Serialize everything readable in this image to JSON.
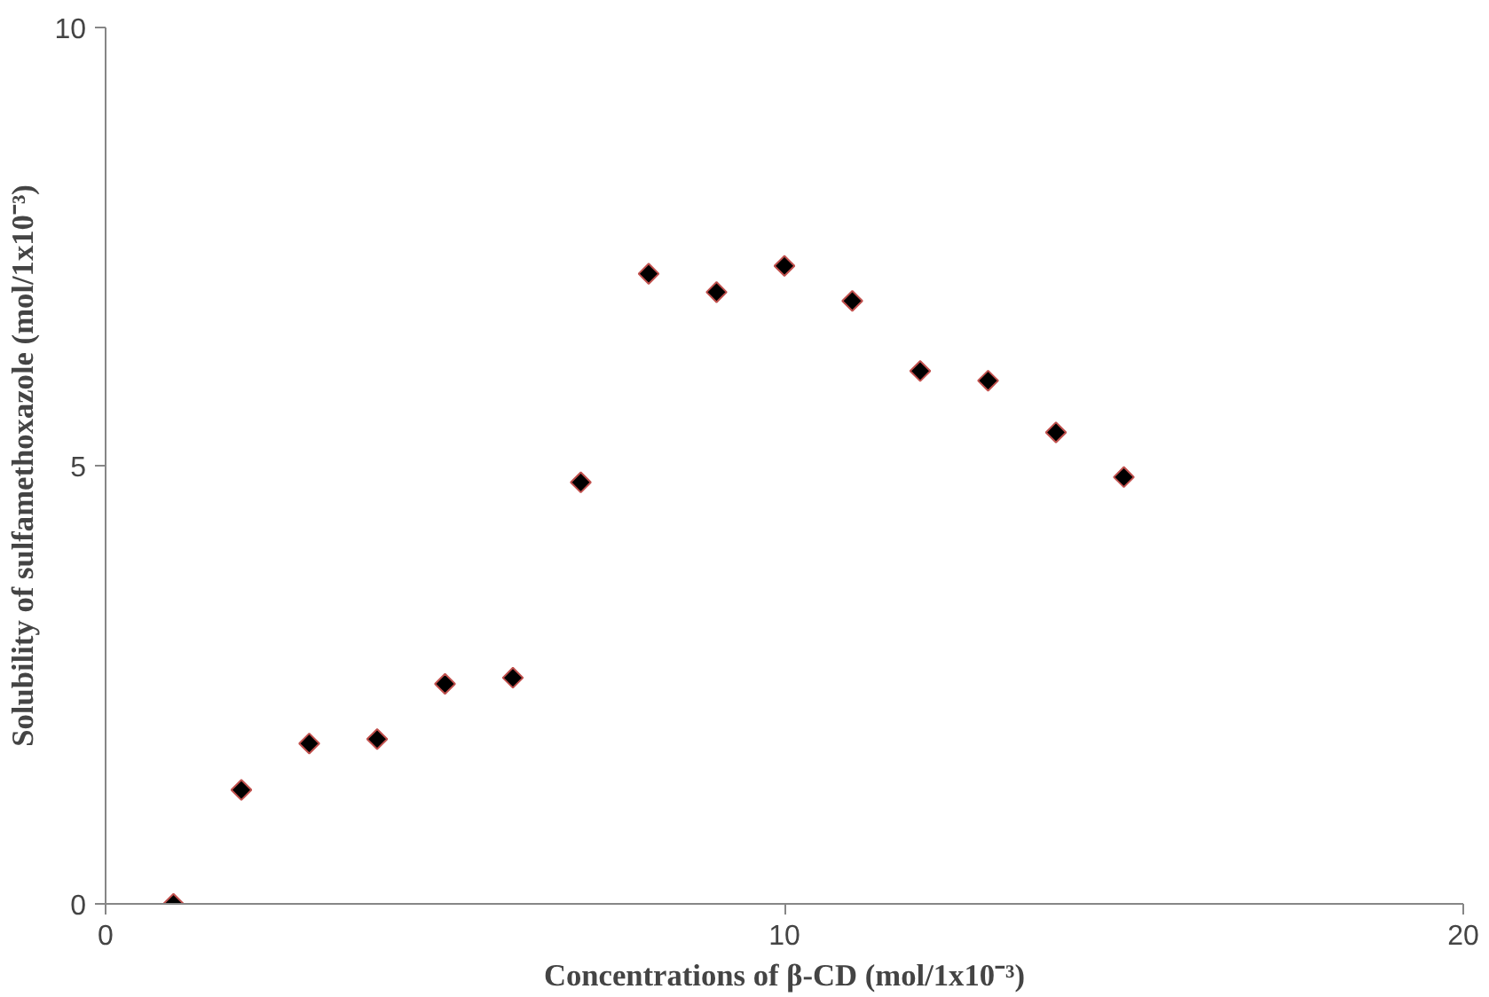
{
  "chart_data": {
    "type": "scatter",
    "xlabel": "Concentrations of β-CD (mol/1x10⁻³)",
    "ylabel": "Solubility of sulfamethoxazole (mol/1x10⁻³)",
    "x": [
      1,
      2,
      3,
      4,
      5,
      6,
      7,
      8,
      9,
      10,
      11,
      12,
      13,
      14,
      15
    ],
    "series": [
      {
        "color": "#000000",
        "values": [
          0,
          1.3,
          1.83,
          1.88,
          2.51,
          2.58,
          4.81,
          7.19,
          6.98,
          7.28,
          6.88,
          6.08,
          5.97,
          5.38,
          4.87
        ]
      }
    ],
    "xlim": [
      0,
      20
    ],
    "xticks": [
      0,
      10,
      20
    ],
    "ylim": [
      0,
      10
    ],
    "yticks": [
      0,
      5,
      10
    ],
    "marker": "diamond",
    "grid": false
  }
}
